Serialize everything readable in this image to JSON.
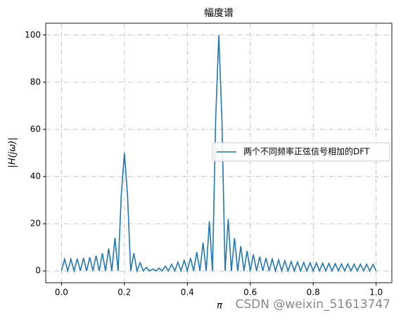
{
  "chart_data": {
    "type": "line",
    "title": "幅度谱",
    "xlabel": "π",
    "ylabel": "|H(jω)|",
    "watermark": "CSDN @weixin_51613747",
    "x": [
      0,
      0.01,
      0.02,
      0.03,
      0.04,
      0.05,
      0.06,
      0.07,
      0.08,
      0.09,
      0.1,
      0.11,
      0.12,
      0.13,
      0.14,
      0.15,
      0.16,
      0.17,
      0.18,
      0.19,
      0.2,
      0.21,
      0.22,
      0.23,
      0.24,
      0.25,
      0.26,
      0.27,
      0.28,
      0.29,
      0.3,
      0.31,
      0.32,
      0.33,
      0.34,
      0.35,
      0.36,
      0.37,
      0.38,
      0.39,
      0.4,
      0.41,
      0.42,
      0.43,
      0.44,
      0.45,
      0.46,
      0.47,
      0.48,
      0.49,
      0.5,
      0.51,
      0.52,
      0.53,
      0.54,
      0.55,
      0.56,
      0.57,
      0.58,
      0.59,
      0.6,
      0.61,
      0.62,
      0.63,
      0.64,
      0.65,
      0.66,
      0.67,
      0.68,
      0.69,
      0.7,
      0.71,
      0.72,
      0.73,
      0.74,
      0.75,
      0.76,
      0.77,
      0.78,
      0.79,
      0.8,
      0.81,
      0.82,
      0.83,
      0.84,
      0.85,
      0.86,
      0.87,
      0.88,
      0.89,
      0.9,
      0.91,
      0.92,
      0.93,
      0.94,
      0.95,
      0.96,
      0.97,
      0.98,
      0.99,
      1.0
    ],
    "series": [
      {
        "name": "两个不同频率正弦信号相加的DFT",
        "color": "#1f77b4",
        "values": [
          0,
          5,
          0,
          5,
          0,
          5.2,
          0,
          5.5,
          0,
          5.8,
          0,
          6.5,
          0,
          7.5,
          0,
          9.5,
          0,
          14,
          0,
          32,
          50,
          32,
          0,
          7.5,
          0,
          3.5,
          0,
          1.5,
          0,
          0.8,
          0,
          1.2,
          0,
          2,
          0,
          2.8,
          0,
          3.7,
          0,
          4.5,
          0,
          5.5,
          0,
          8,
          0,
          12,
          0,
          21,
          0,
          64,
          100,
          64,
          0,
          22,
          0,
          14,
          0,
          10.5,
          0,
          8.5,
          0,
          7,
          0,
          6,
          0,
          5.5,
          0,
          5,
          0,
          4.6,
          0,
          4.3,
          0,
          4,
          0,
          3.8,
          0,
          3.6,
          0,
          3.5,
          0,
          3.4,
          0,
          3.3,
          0,
          3.2,
          0,
          3.1,
          0,
          3.0,
          0,
          3.0,
          0,
          2.9,
          0,
          2.9,
          0,
          2.8,
          0,
          2.8,
          0
        ]
      }
    ],
    "xlim": [
      -0.05,
      1.05
    ],
    "ylim": [
      -5,
      105
    ],
    "xticks": [
      {
        "value": 0,
        "label": "0.0"
      },
      0.2,
      0.4,
      0.6,
      0.8,
      {
        "value": 1,
        "label": "1.0"
      }
    ],
    "yticks": [
      0,
      20,
      40,
      60,
      80,
      100
    ],
    "grid": true,
    "legend": "right"
  }
}
